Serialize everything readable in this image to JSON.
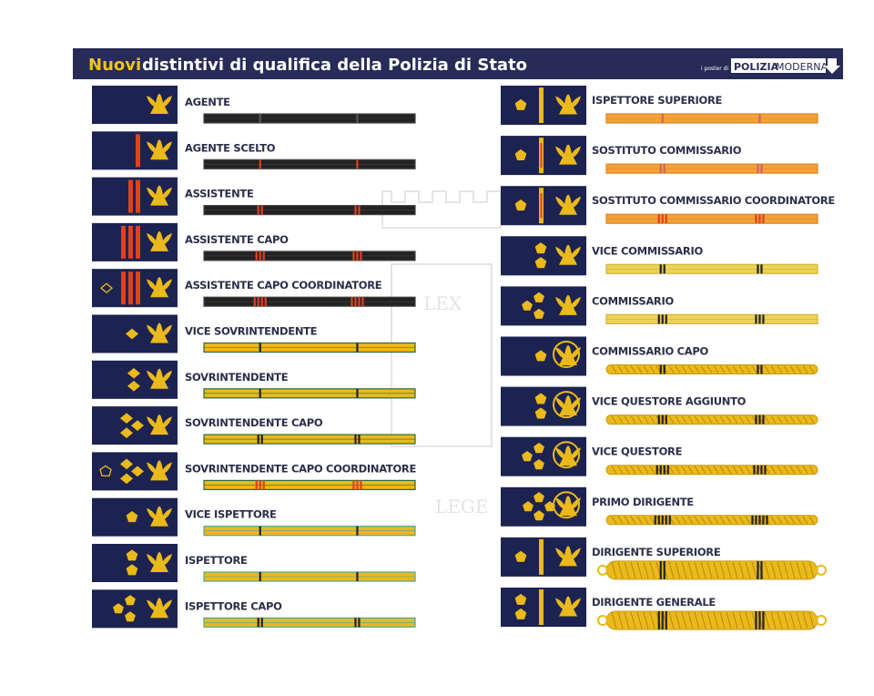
{
  "header": {
    "highlight": "Nuovi",
    "title": "distintivi di qualifica della Polizia di Stato",
    "brand_prefix": "i poster di",
    "brand_bold": "POLIZIA",
    "brand_light": "MODERNA"
  },
  "watermark": {
    "motto": "LEGE",
    "book": "LEX"
  },
  "left_column": {
    "ranks": [
      "AGENTE",
      "AGENTE SCELTO",
      "ASSISTENTE",
      "ASSISTENTE CAPO",
      "ASSISTENTE CAPO COORDINATORE",
      "VICE SOVRINTENDENTE",
      "SOVRINTENDENTE",
      "SOVRINTENDENTE CAPO",
      "SOVRINTENDENTE CAPO COORDINATORE",
      "VICE  ISPETTORE",
      "ISPETTORE",
      "ISPETTORE CAPO"
    ]
  },
  "right_column": {
    "ranks": [
      "ISPETTORE SUPERIORE",
      "SOSTITUTO COMMISSARIO",
      "SOSTITUTO COMMISSARIO COORDINATORE",
      "VICE COMMISSARIO",
      "COMMISSARIO",
      "COMMISSARIO CAPO",
      "VICE QUESTORE AGGIUNTO",
      "VICE QUESTORE",
      "PRIMO DIRIGENTE",
      "DIRIGENTE SUPERIORE",
      "DIRIGENTE GENERALE"
    ]
  }
}
